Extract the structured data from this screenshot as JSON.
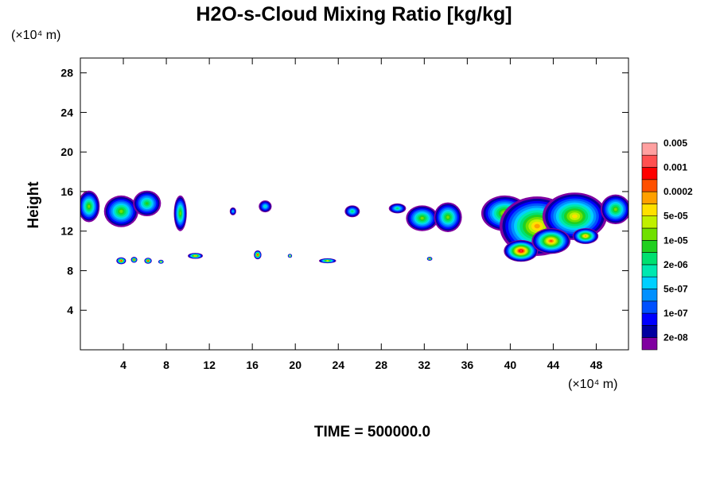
{
  "chart_data": {
    "type": "heatmap",
    "title": "H2O-s-Cloud Mixing Ratio [kg/kg]",
    "xlabel": "",
    "ylabel": "Height",
    "x_unit": "(×10⁴ m)",
    "y_unit": "(×10⁴ m)",
    "xlim": [
      0,
      51
    ],
    "ylim": [
      0,
      29.5
    ],
    "x_ticks": [
      4,
      8,
      12,
      16,
      20,
      24,
      28,
      32,
      36,
      40,
      44,
      48
    ],
    "y_ticks": [
      4,
      8,
      12,
      16,
      20,
      24,
      28
    ],
    "footer": "TIME = 500000.0",
    "colorbar": {
      "colors": [
        "#8000a0",
        "#0000a0",
        "#0000ff",
        "#0050ff",
        "#0090ff",
        "#00d0ff",
        "#00e8b0",
        "#00e070",
        "#20d020",
        "#70e000",
        "#c0f000",
        "#ffe000",
        "#ffa000",
        "#ff5000",
        "#ff0000",
        "#ff5050",
        "#ffa0a0"
      ],
      "labels": [
        {
          "text": "2e-08",
          "level": 1
        },
        {
          "text": "1e-07",
          "level": 3
        },
        {
          "text": "5e-07",
          "level": 5
        },
        {
          "text": "2e-06",
          "level": 7
        },
        {
          "text": "1e-05",
          "level": 9
        },
        {
          "text": "5e-05",
          "level": 11
        },
        {
          "text": "0.0002",
          "level": 13
        },
        {
          "text": "0.001",
          "level": 15
        },
        {
          "text": "0.005",
          "level": 17
        }
      ]
    },
    "clouds": [
      {
        "x": 0.8,
        "y": 14.5,
        "rx": 1.0,
        "ry": 1.6,
        "peak": 9
      },
      {
        "x": 3.8,
        "y": 14.0,
        "rx": 1.6,
        "ry": 1.6,
        "peak": 9
      },
      {
        "x": 6.2,
        "y": 14.8,
        "rx": 1.3,
        "ry": 1.3,
        "peak": 8
      },
      {
        "x": 9.3,
        "y": 13.8,
        "rx": 0.6,
        "ry": 1.8,
        "peak": 9
      },
      {
        "x": 14.2,
        "y": 14.0,
        "rx": 0.3,
        "ry": 0.4,
        "peak": 5
      },
      {
        "x": 17.2,
        "y": 14.5,
        "rx": 0.6,
        "ry": 0.6,
        "peak": 6
      },
      {
        "x": 25.3,
        "y": 14.0,
        "rx": 0.7,
        "ry": 0.6,
        "peak": 7
      },
      {
        "x": 29.5,
        "y": 14.3,
        "rx": 0.8,
        "ry": 0.5,
        "peak": 7
      },
      {
        "x": 31.8,
        "y": 13.3,
        "rx": 1.5,
        "ry": 1.3,
        "peak": 9
      },
      {
        "x": 34.2,
        "y": 13.4,
        "rx": 1.3,
        "ry": 1.5,
        "peak": 9
      },
      {
        "x": 39.5,
        "y": 13.8,
        "rx": 2.2,
        "ry": 1.8,
        "peak": 10
      },
      {
        "x": 42.5,
        "y": 12.5,
        "rx": 3.5,
        "ry": 3.0,
        "peak": 12
      },
      {
        "x": 46.0,
        "y": 13.5,
        "rx": 3.0,
        "ry": 2.4,
        "peak": 11
      },
      {
        "x": 49.8,
        "y": 14.2,
        "rx": 1.4,
        "ry": 1.5,
        "peak": 9
      },
      {
        "x": 41.0,
        "y": 10.0,
        "rx": 1.6,
        "ry": 1.1,
        "peak": 15
      },
      {
        "x": 43.8,
        "y": 11.0,
        "rx": 1.8,
        "ry": 1.3,
        "peak": 13
      },
      {
        "x": 47.0,
        "y": 11.5,
        "rx": 1.2,
        "ry": 0.8,
        "peak": 12
      },
      {
        "x": 3.8,
        "y": 9.0,
        "rx": 0.45,
        "ry": 0.35,
        "peak": 14
      },
      {
        "x": 5.0,
        "y": 9.1,
        "rx": 0.3,
        "ry": 0.3,
        "peak": 13
      },
      {
        "x": 6.3,
        "y": 9.0,
        "rx": 0.35,
        "ry": 0.3,
        "peak": 14
      },
      {
        "x": 7.5,
        "y": 8.9,
        "rx": 0.25,
        "ry": 0.2,
        "peak": 11
      },
      {
        "x": 10.7,
        "y": 9.5,
        "rx": 0.7,
        "ry": 0.3,
        "peak": 12
      },
      {
        "x": 16.5,
        "y": 9.6,
        "rx": 0.35,
        "ry": 0.45,
        "peak": 14
      },
      {
        "x": 19.5,
        "y": 9.5,
        "rx": 0.2,
        "ry": 0.2,
        "peak": 11
      },
      {
        "x": 23.0,
        "y": 9.0,
        "rx": 0.8,
        "ry": 0.25,
        "peak": 11
      },
      {
        "x": 32.5,
        "y": 9.2,
        "rx": 0.25,
        "ry": 0.2,
        "peak": 13
      }
    ]
  }
}
